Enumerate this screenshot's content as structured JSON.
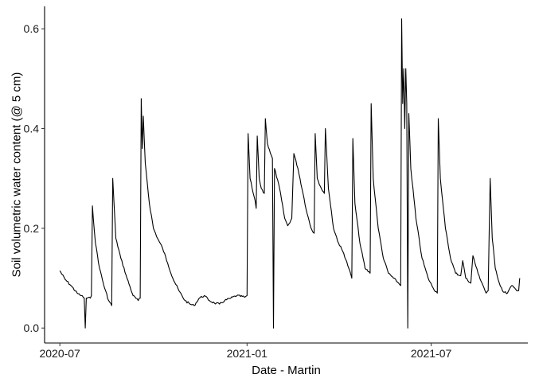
{
  "chart_data": {
    "type": "line",
    "xlabel": "Date - Martin",
    "ylabel": "Soil volumetric water content (@ 5 cm)",
    "x_ticks": [
      "2020-07",
      "2021-01",
      "2021-07"
    ],
    "y_ticks": [
      "0.0",
      "0.2",
      "0.4",
      "0.6"
    ],
    "xlim": [
      "2020-06-16",
      "2021-10-04"
    ],
    "ylim": [
      -0.03,
      0.645
    ],
    "grid": false,
    "legend": "none",
    "series": [
      {
        "color": "#000000",
        "points": [
          [
            "2020-07-01",
            0.115
          ],
          [
            "2020-07-06",
            0.098
          ],
          [
            "2020-07-12",
            0.085
          ],
          [
            "2020-07-18",
            0.07
          ],
          [
            "2020-07-22",
            0.065
          ],
          [
            "2020-07-25",
            0.06
          ],
          [
            "2020-07-26",
            0.0
          ],
          [
            "2020-07-27",
            0.06
          ],
          [
            "2020-07-31",
            0.06
          ],
          [
            "2020-08-01",
            0.065
          ],
          [
            "2020-08-02",
            0.245
          ],
          [
            "2020-08-05",
            0.17
          ],
          [
            "2020-08-09",
            0.12
          ],
          [
            "2020-08-14",
            0.08
          ],
          [
            "2020-08-18",
            0.055
          ],
          [
            "2020-08-21",
            0.045
          ],
          [
            "2020-08-22",
            0.3
          ],
          [
            "2020-08-25",
            0.18
          ],
          [
            "2020-08-30",
            0.14
          ],
          [
            "2020-09-05",
            0.1
          ],
          [
            "2020-09-11",
            0.065
          ],
          [
            "2020-09-16",
            0.055
          ],
          [
            "2020-09-18",
            0.06
          ],
          [
            "2020-09-19",
            0.46
          ],
          [
            "2020-09-20",
            0.36
          ],
          [
            "2020-09-21",
            0.425
          ],
          [
            "2020-09-23",
            0.33
          ],
          [
            "2020-09-27",
            0.25
          ],
          [
            "2020-10-01",
            0.2
          ],
          [
            "2020-10-05",
            0.18
          ],
          [
            "2020-10-10",
            0.16
          ],
          [
            "2020-10-15",
            0.13
          ],
          [
            "2020-10-20",
            0.1
          ],
          [
            "2020-10-26",
            0.075
          ],
          [
            "2020-11-01",
            0.055
          ],
          [
            "2020-11-06",
            0.048
          ],
          [
            "2020-11-10",
            0.045
          ],
          [
            "2020-11-15",
            0.06
          ],
          [
            "2020-11-20",
            0.065
          ],
          [
            "2020-11-25",
            0.055
          ],
          [
            "2020-11-30",
            0.05
          ],
          [
            "2020-12-05",
            0.048
          ],
          [
            "2020-12-10",
            0.055
          ],
          [
            "2020-12-16",
            0.06
          ],
          [
            "2020-12-22",
            0.065
          ],
          [
            "2020-12-30",
            0.062
          ],
          [
            "2021-01-01",
            0.065
          ],
          [
            "2021-01-02",
            0.39
          ],
          [
            "2021-01-04",
            0.3
          ],
          [
            "2021-01-06",
            0.28
          ],
          [
            "2021-01-09",
            0.255
          ],
          [
            "2021-01-10",
            0.24
          ],
          [
            "2021-01-11",
            0.385
          ],
          [
            "2021-01-13",
            0.3
          ],
          [
            "2021-01-15",
            0.28
          ],
          [
            "2021-01-18",
            0.27
          ],
          [
            "2021-01-19",
            0.42
          ],
          [
            "2021-01-21",
            0.37
          ],
          [
            "2021-01-24",
            0.35
          ],
          [
            "2021-01-26",
            0.34
          ],
          [
            "2021-01-27",
            0.0
          ],
          [
            "2021-01-28",
            0.32
          ],
          [
            "2021-02-02",
            0.28
          ],
          [
            "2021-02-07",
            0.22
          ],
          [
            "2021-02-10",
            0.205
          ],
          [
            "2021-02-14",
            0.22
          ],
          [
            "2021-02-16",
            0.35
          ],
          [
            "2021-02-20",
            0.32
          ],
          [
            "2021-02-25",
            0.27
          ],
          [
            "2021-03-01",
            0.23
          ],
          [
            "2021-03-05",
            0.2
          ],
          [
            "2021-03-08",
            0.19
          ],
          [
            "2021-03-09",
            0.39
          ],
          [
            "2021-03-11",
            0.3
          ],
          [
            "2021-03-15",
            0.28
          ],
          [
            "2021-03-18",
            0.27
          ],
          [
            "2021-03-19",
            0.4
          ],
          [
            "2021-03-22",
            0.28
          ],
          [
            "2021-03-27",
            0.2
          ],
          [
            "2021-04-01",
            0.17
          ],
          [
            "2021-04-06",
            0.15
          ],
          [
            "2021-04-11",
            0.12
          ],
          [
            "2021-04-14",
            0.1
          ],
          [
            "2021-04-15",
            0.38
          ],
          [
            "2021-04-17",
            0.25
          ],
          [
            "2021-04-22",
            0.17
          ],
          [
            "2021-04-27",
            0.12
          ],
          [
            "2021-05-02",
            0.11
          ],
          [
            "2021-05-03",
            0.45
          ],
          [
            "2021-05-05",
            0.3
          ],
          [
            "2021-05-10",
            0.2
          ],
          [
            "2021-05-15",
            0.14
          ],
          [
            "2021-05-20",
            0.11
          ],
          [
            "2021-05-25",
            0.1
          ],
          [
            "2021-05-30",
            0.09
          ],
          [
            "2021-06-01",
            0.085
          ],
          [
            "2021-06-02",
            0.62
          ],
          [
            "2021-06-03",
            0.45
          ],
          [
            "2021-06-04",
            0.52
          ],
          [
            "2021-06-05",
            0.4
          ],
          [
            "2021-06-06",
            0.52
          ],
          [
            "2021-06-07",
            0.45
          ],
          [
            "2021-06-08",
            0.0
          ],
          [
            "2021-06-09",
            0.43
          ],
          [
            "2021-06-11",
            0.32
          ],
          [
            "2021-06-16",
            0.22
          ],
          [
            "2021-06-22",
            0.14
          ],
          [
            "2021-06-28",
            0.1
          ],
          [
            "2021-07-03",
            0.08
          ],
          [
            "2021-07-07",
            0.07
          ],
          [
            "2021-07-08",
            0.42
          ],
          [
            "2021-07-10",
            0.3
          ],
          [
            "2021-07-15",
            0.2
          ],
          [
            "2021-07-20",
            0.14
          ],
          [
            "2021-07-25",
            0.11
          ],
          [
            "2021-07-30",
            0.105
          ],
          [
            "2021-08-01",
            0.135
          ],
          [
            "2021-08-04",
            0.1
          ],
          [
            "2021-08-09",
            0.09
          ],
          [
            "2021-08-11",
            0.145
          ],
          [
            "2021-08-16",
            0.11
          ],
          [
            "2021-08-21",
            0.085
          ],
          [
            "2021-08-24",
            0.07
          ],
          [
            "2021-08-26",
            0.075
          ],
          [
            "2021-08-28",
            0.3
          ],
          [
            "2021-08-30",
            0.18
          ],
          [
            "2021-09-02",
            0.12
          ],
          [
            "2021-09-06",
            0.09
          ],
          [
            "2021-09-10",
            0.072
          ],
          [
            "2021-09-14",
            0.07
          ],
          [
            "2021-09-18",
            0.085
          ],
          [
            "2021-09-22",
            0.078
          ],
          [
            "2021-09-25",
            0.075
          ],
          [
            "2021-09-26",
            0.1
          ]
        ]
      }
    ]
  }
}
